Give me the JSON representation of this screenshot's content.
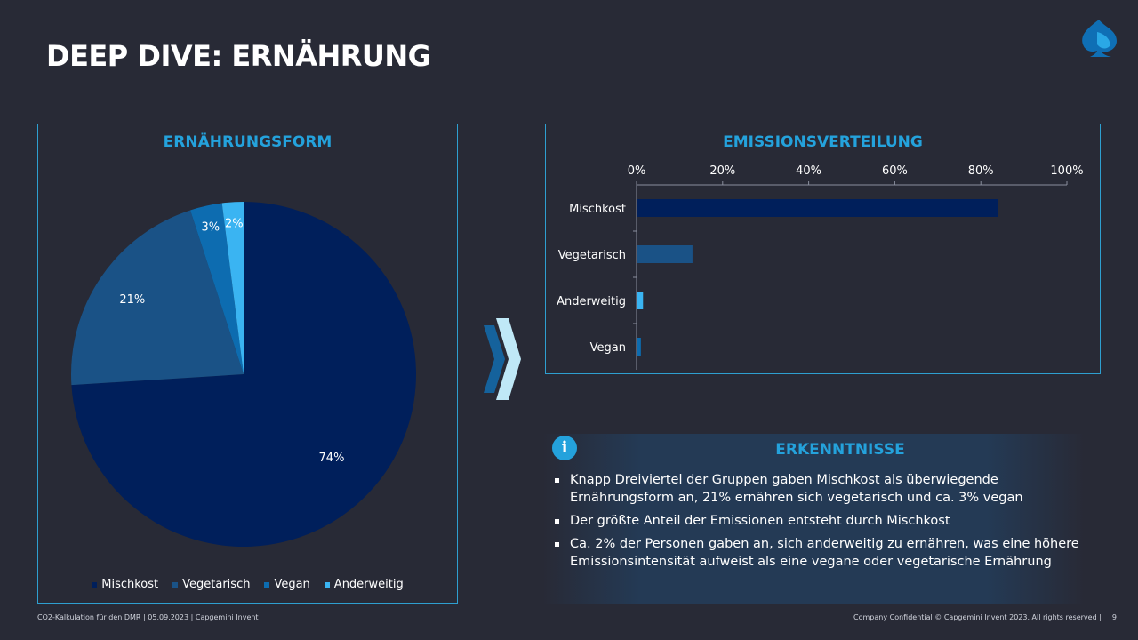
{
  "slide": {
    "title": "DEEP DIVE: ERNÄHRUNG",
    "logo_icon": "spade-logo-icon",
    "arrow_icon": "double-chevron-right-icon"
  },
  "pie_panel": {
    "title": "ERNÄHRUNGSFORM"
  },
  "bar_panel": {
    "title": "EMISSIONSVERTEILUNG"
  },
  "chart_data": [
    {
      "type": "pie",
      "title": "ERNÄHRUNGSFORM",
      "categories": [
        "Mischkost",
        "Vegetarisch",
        "Vegan",
        "Anderweitig"
      ],
      "values": [
        74,
        21,
        3,
        2
      ],
      "labels": [
        "74%",
        "21%",
        "3%",
        "2%"
      ],
      "colors": [
        "#001f5b",
        "#1a5286",
        "#0d6cb0",
        "#3ab4f2"
      ],
      "legend": "bottom",
      "start": "12 o'clock, clockwise"
    },
    {
      "type": "bar",
      "orientation": "horizontal",
      "title": "EMISSIONSVERTEILUNG",
      "categories": [
        "Mischkost",
        "Vegetarisch",
        "Anderweitig",
        "Vegan"
      ],
      "values": [
        84,
        13,
        1.5,
        1
      ],
      "colors": [
        "#001f5b",
        "#1a5286",
        "#3ab4f2",
        "#0d6cb0"
      ],
      "xlim": [
        0,
        100
      ],
      "xticks": [
        "0%",
        "20%",
        "40%",
        "60%",
        "80%",
        "100%"
      ],
      "axis_position": "top",
      "grid": false
    }
  ],
  "insights": {
    "icon": "info-icon",
    "icon_glyph": "i",
    "title": "ERKENNTNISSE",
    "bullets": [
      "Knapp Dreiviertel der Gruppen gaben Mischkost als überwiegende Ernährungsform an, 21% ernähren sich vegetarisch und ca. 3% vegan",
      "Der größte Anteil der Emissionen entsteht durch Mischkost",
      "Ca. 2% der Personen gaben an, sich anderweitig zu ernähren, was eine höhere Emissionsintensität aufweist als eine vegane oder vegetarische Ernährung"
    ]
  },
  "footer": {
    "left": "CO2-Kalkulation für den DMR | 05.09.2023 | Capgemini Invent",
    "right": "Company Confidential © Capgemini Invent 2023. All rights reserved |",
    "page": "9"
  }
}
